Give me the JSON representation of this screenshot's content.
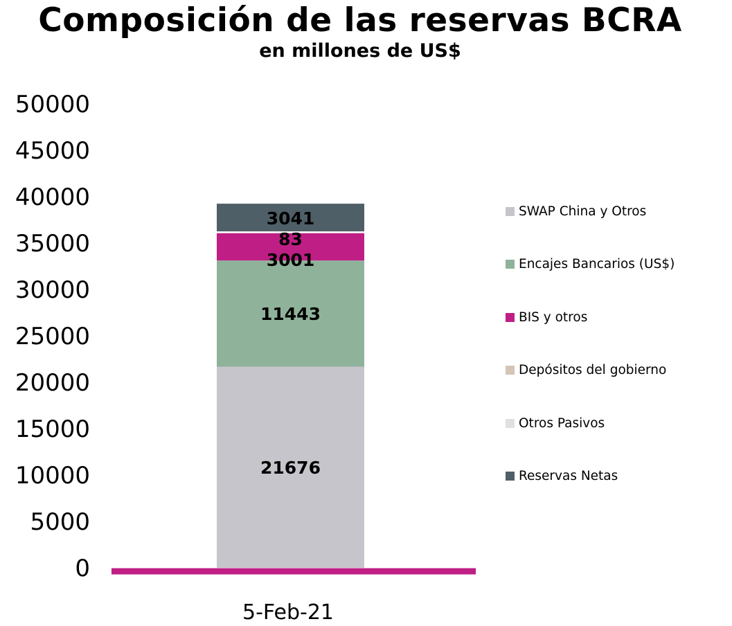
{
  "chart_data": {
    "type": "bar",
    "stacked": true,
    "title": "Composición de las reservas BCRA",
    "subtitle": "en millones de US$",
    "categories": [
      "5-Feb-21"
    ],
    "ylim": [
      0,
      50000
    ],
    "yticks": [
      0,
      5000,
      10000,
      15000,
      20000,
      25000,
      30000,
      35000,
      40000,
      45000,
      50000
    ],
    "legend_position": "right",
    "grid": false,
    "series": [
      {
        "name": "SWAP China y Otros",
        "values": [
          21676
        ],
        "color": "#c6c5cb",
        "label": "21676"
      },
      {
        "name": "Encajes Bancarios (US$)",
        "values": [
          11443
        ],
        "color": "#8fb39a",
        "label": "11443"
      },
      {
        "name": "BIS y otros",
        "values": [
          3001
        ],
        "color": "#bf1e85",
        "label": "3001"
      },
      {
        "name": "Depósitos del gobierno",
        "values": [
          83
        ],
        "color": "#d4c5b6",
        "label": "83"
      },
      {
        "name": "Otros Pasivos",
        "values": [
          0
        ],
        "color": "#e0e0e0",
        "label": ""
      },
      {
        "name": "Reservas Netas",
        "values": [
          3041
        ],
        "color": "#4f5f67",
        "label": "3041"
      }
    ],
    "axis_line_color": "#bf1e85"
  }
}
